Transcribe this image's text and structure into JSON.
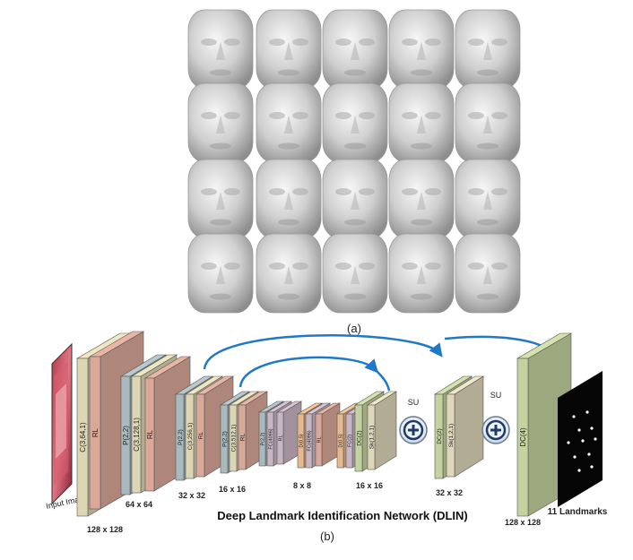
{
  "panel_a_label": "(a)",
  "panel_b_label": "(b)",
  "network_title": "Deep Landmark Identification Network (DLIN)",
  "input_label": "Input Image",
  "output_label": "11 Landmarks",
  "su_labels": [
    "SU",
    "SU"
  ],
  "resolution_labels": [
    "128 x 128",
    "64 x 64",
    "32 x 32",
    "16 x 16",
    "8 x 8",
    "16 x 16",
    "32 x 32",
    "128 x 128"
  ],
  "layer_labels": [
    "C(3,64,1)",
    "RL",
    "P(2,2)",
    "C(3,128,1)",
    "RL",
    "P(2,2)",
    "C(3,256,1)",
    "RL",
    "P(2,2)",
    "C(3,512,1)",
    "RL",
    "P(2,2)",
    "FC(4096)",
    "RL",
    "D(0.5)",
    "FC(4096)",
    "RL",
    "D(0.5)",
    "FC(2)",
    "DC(2)",
    "Sk(1,2,1)",
    "DC(2)",
    "Sk(1,2,1)",
    "DC(4)"
  ],
  "face_grid": {
    "rows": 4,
    "cols": 5
  },
  "colors": {
    "conv": "#ddd6b4",
    "relu": "#d9a898",
    "pool": "#aab9bd",
    "fc": "#c9b6c5",
    "dropout": "#e7b98f",
    "deconv": "#c3d29e",
    "skip": "#ded7b9",
    "arrow": "#1f78c8",
    "su_plus": "#1d3c6b"
  }
}
